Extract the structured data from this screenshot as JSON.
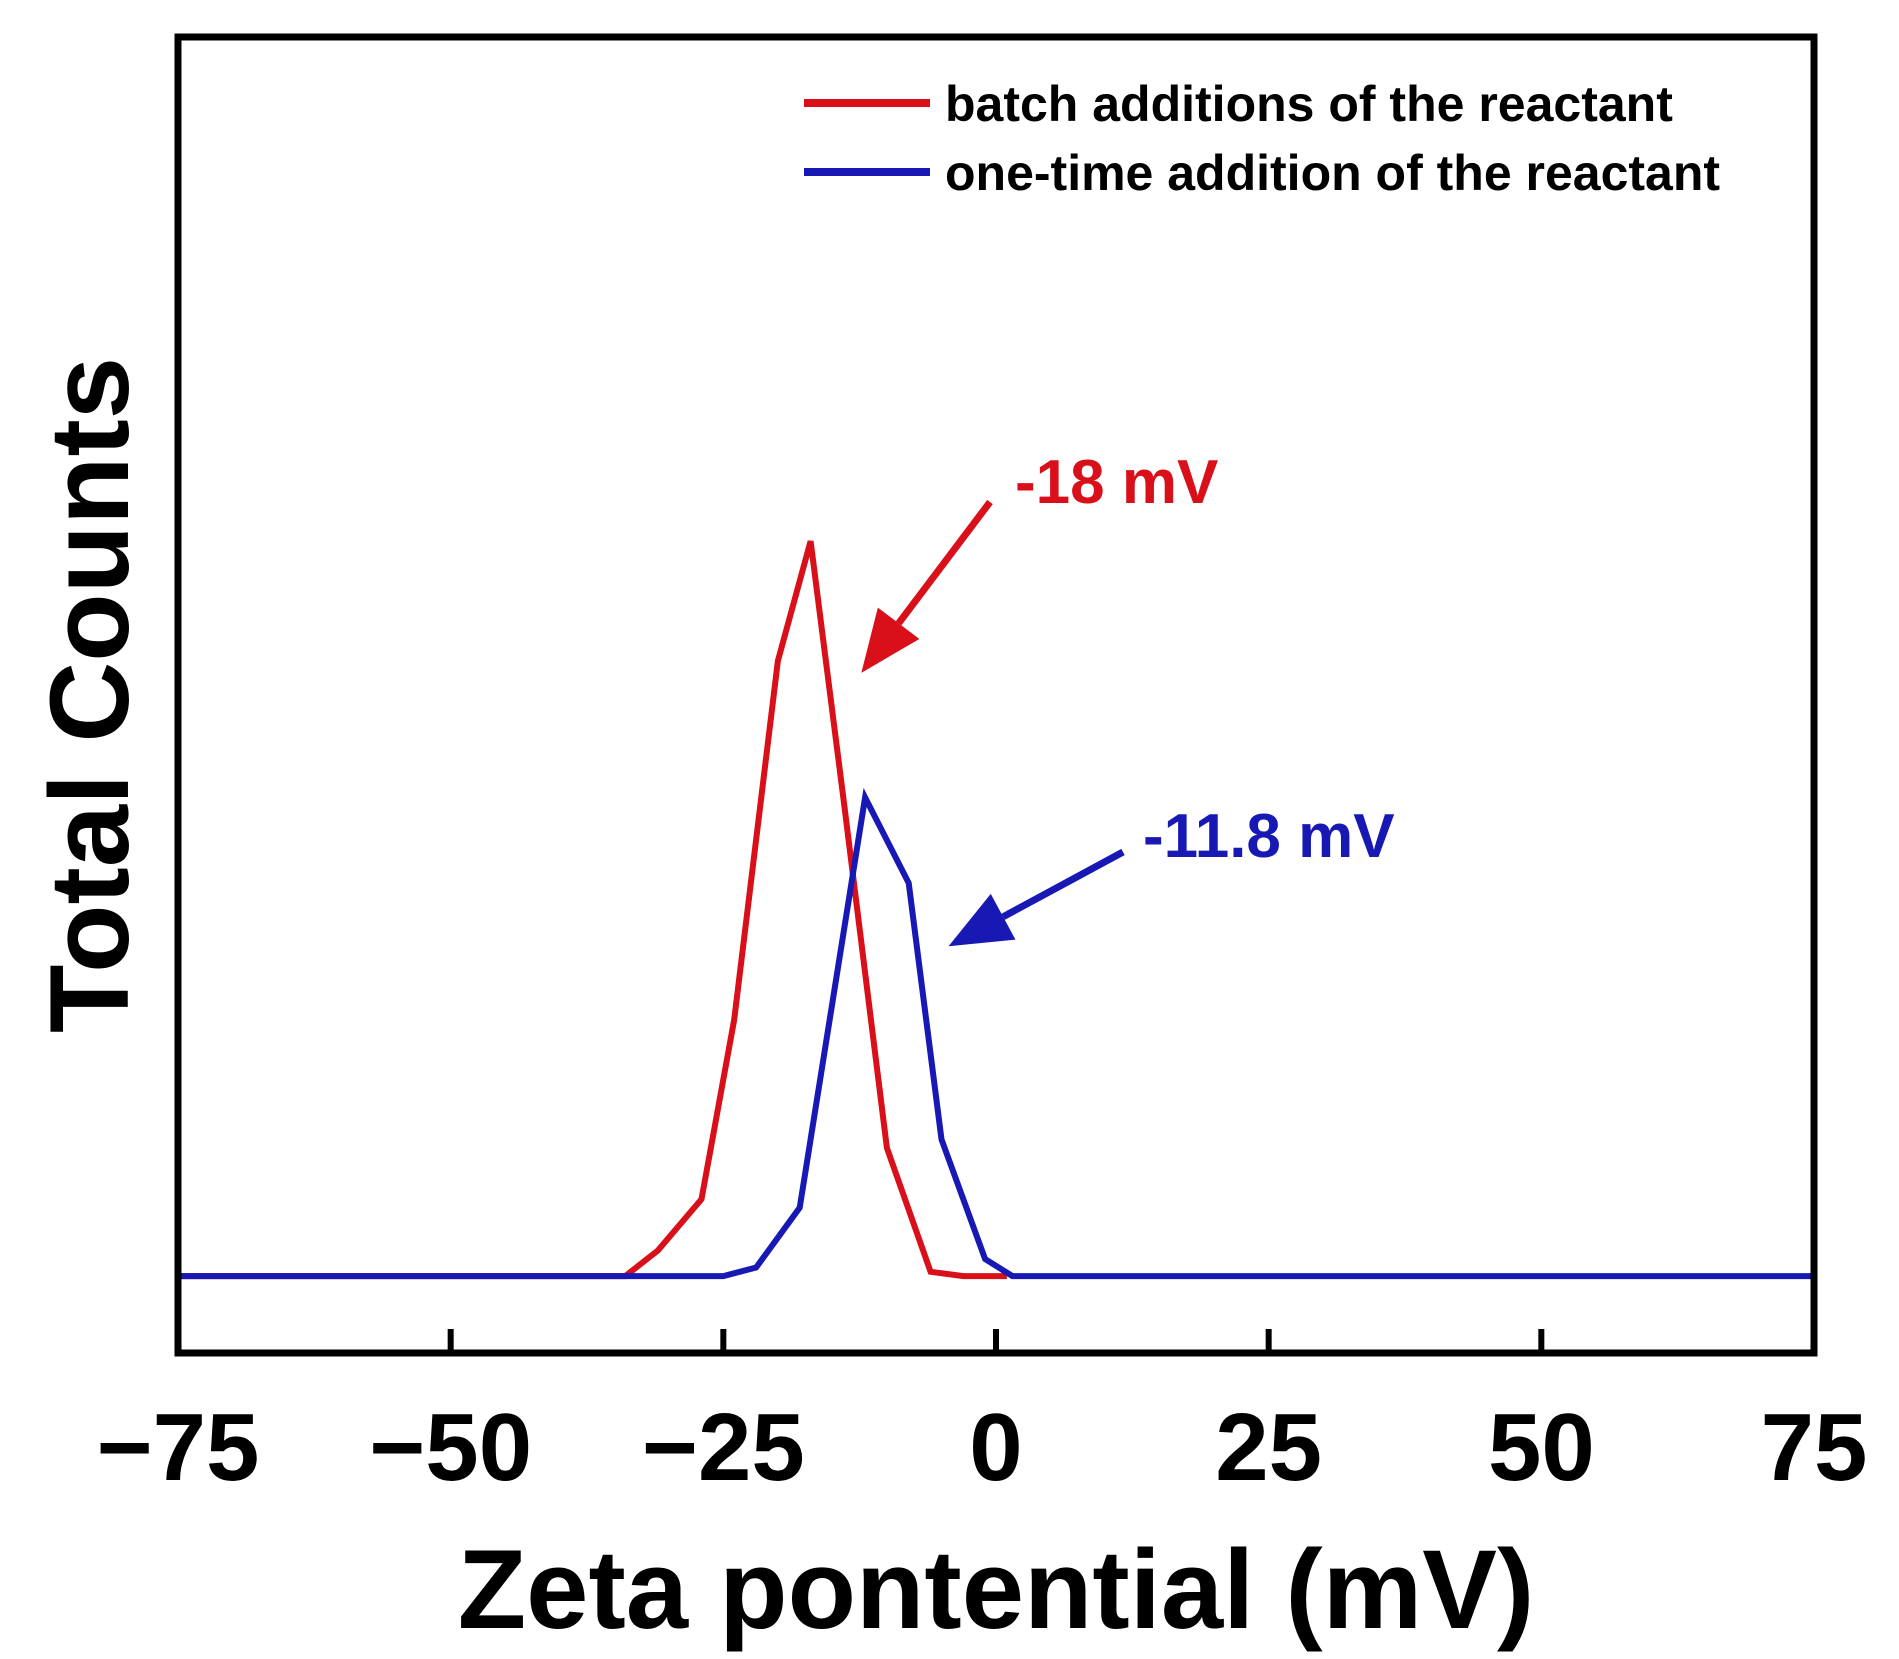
{
  "chart_data": {
    "type": "line",
    "title": "",
    "xlabel": "Zeta pontential (mV)",
    "ylabel": "Total Counts",
    "xlim": [
      -75,
      75
    ],
    "ylim": [
      -0.09,
      1.45
    ],
    "xticks": [
      -75,
      -50,
      -25,
      0,
      25,
      50,
      75
    ],
    "xtick_labels": [
      "−75",
      "−50",
      "−25",
      "0",
      "25",
      "50",
      "75"
    ],
    "yticks_shown": false,
    "grid": false,
    "legend_position": "top-right",
    "series": [
      {
        "name": "batch additions of the reactant",
        "color": "#d9101a",
        "x": [
          -75,
          -37,
          -34,
          -31,
          -27,
          -24,
          -20,
          -17,
          -14,
          -10,
          -6,
          -3,
          1
        ],
        "y": [
          0,
          0,
          0,
          0.03,
          0.09,
          0.3,
          0.72,
          0.86,
          0.56,
          0.15,
          0.005,
          0,
          0
        ]
      },
      {
        "name": "one-time addition of the reactant",
        "color": "#1818b4",
        "x": [
          -75,
          -25,
          -22,
          -18,
          -15,
          -12,
          -8,
          -5,
          -1,
          1.5,
          75
        ],
        "y": [
          0,
          0,
          0.01,
          0.08,
          0.32,
          0.56,
          0.46,
          0.16,
          0.02,
          0,
          0
        ]
      }
    ],
    "annotations": [
      {
        "text": "-18 mV",
        "color": "#d9101a",
        "arrow_to": [
          -14,
          0.72
        ]
      },
      {
        "text": "-11.8 mV",
        "color": "#1818b4",
        "arrow_to": [
          -6,
          0.4
        ]
      }
    ]
  }
}
